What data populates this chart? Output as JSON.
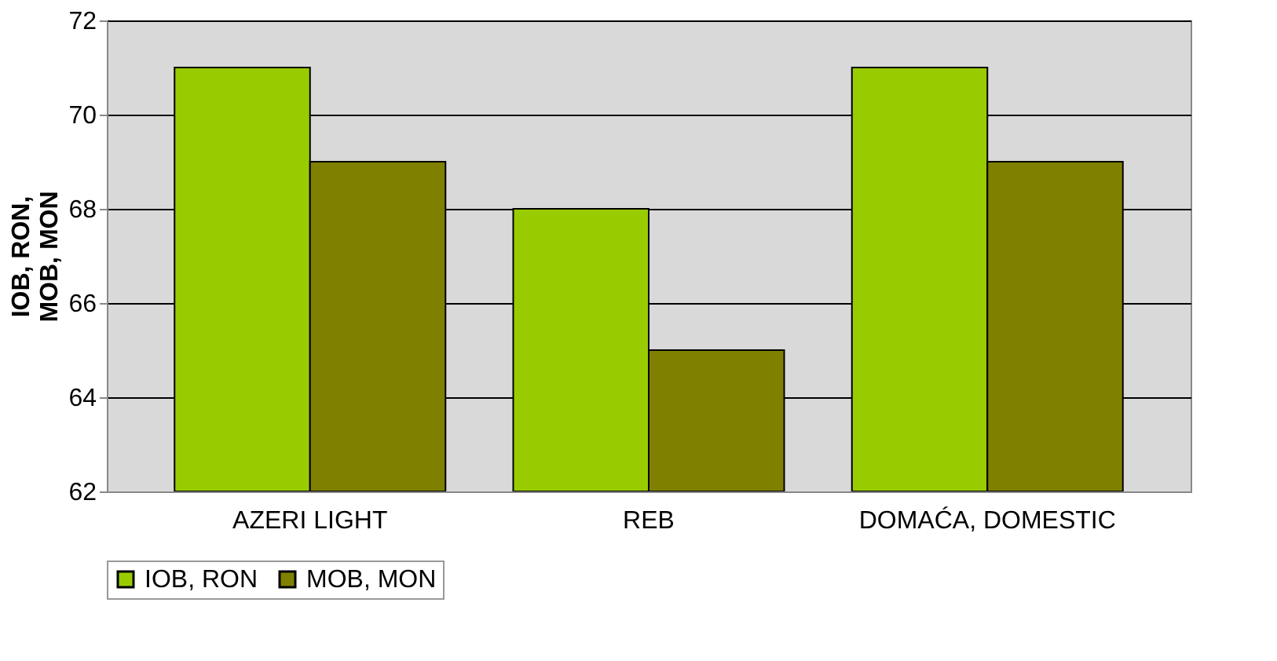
{
  "chart_data": {
    "type": "bar",
    "ylabel": "IOB, RON, MOB, MON",
    "categories": [
      "AZERI LIGHT",
      "REB",
      "DOMAĆA, DOMESTIC"
    ],
    "series": [
      {
        "name": "IOB, RON",
        "color": "#99cc00",
        "values": [
          71,
          68,
          71
        ]
      },
      {
        "name": "MOB, MON",
        "color": "#808000",
        "values": [
          69,
          65,
          69
        ]
      }
    ],
    "ylim": [
      62,
      72
    ],
    "yticks": [
      62,
      64,
      66,
      68,
      70,
      72
    ],
    "grid": "y",
    "legend": "bottom"
  }
}
